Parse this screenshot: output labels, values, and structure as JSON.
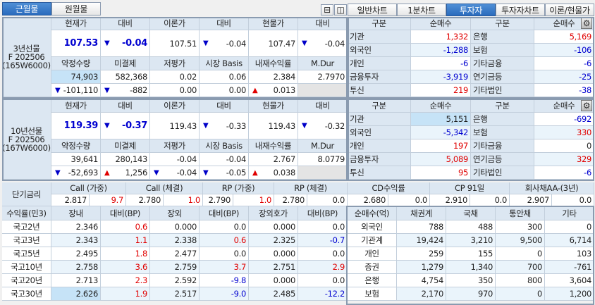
{
  "top_tabs": [
    {
      "label": "근월물",
      "active": true
    },
    {
      "label": "원월물",
      "active": false
    }
  ],
  "view_icons": [
    "layout-split-icon",
    "layout-single-icon"
  ],
  "right_tabs": [
    {
      "label": "일반차트",
      "active": false
    },
    {
      "label": "1분차트",
      "active": false
    },
    {
      "label": "투자자",
      "active": true
    },
    {
      "label": "투자자차트",
      "active": false
    },
    {
      "label": "이론/현물가",
      "active": false
    }
  ],
  "futures": [
    {
      "label": [
        "3년선물",
        "F 202506",
        "(165W6000)"
      ],
      "headers1": [
        "현재가",
        "대비",
        "이론가",
        "대비",
        "현물가",
        "대비"
      ],
      "row1": [
        {
          "v": "107.53",
          "c": "blue",
          "b": true
        },
        {
          "v": "-0.04",
          "c": "blue",
          "b": true,
          "a": "down"
        },
        {
          "v": "107.51"
        },
        {
          "v": "-0.04",
          "a": "down"
        },
        {
          "v": "107.47"
        },
        {
          "v": "-0.04",
          "a": "down"
        }
      ],
      "headers2": [
        "약정수량",
        "미결제",
        "저평가",
        "시장 Basis",
        "내재수익률",
        "M.Dur"
      ],
      "row2": [
        {
          "v": "74,903",
          "hl": true
        },
        {
          "v": "582,368"
        },
        {
          "v": "0.02"
        },
        {
          "v": "0.06"
        },
        {
          "v": "2.384"
        },
        {
          "v": "2.7970"
        }
      ],
      "row3": [
        {
          "v": "-101,110",
          "a": "down"
        },
        {
          "v": "-882",
          "a": "down"
        },
        {
          "v": "0.00"
        },
        {
          "v": "0.00"
        },
        {
          "v": "0.013",
          "a": "up"
        },
        {
          "v": "",
          "gray": true
        }
      ]
    },
    {
      "label": [
        "10년선물",
        "F 202506",
        "(167W6000)"
      ],
      "headers1": [
        "현재가",
        "대비",
        "이론가",
        "대비",
        "현물가",
        "대비"
      ],
      "row1": [
        {
          "v": "119.39",
          "c": "blue",
          "b": true
        },
        {
          "v": "-0.37",
          "c": "blue",
          "b": true,
          "a": "down"
        },
        {
          "v": "119.43"
        },
        {
          "v": "-0.33",
          "a": "down"
        },
        {
          "v": "119.43"
        },
        {
          "v": "-0.32",
          "a": "down"
        }
      ],
      "headers2": [
        "약정수량",
        "미결제",
        "저평가",
        "시장 Basis",
        "내재수익률",
        "M.Dur"
      ],
      "row2": [
        {
          "v": "39,641"
        },
        {
          "v": "280,143"
        },
        {
          "v": "-0.04"
        },
        {
          "v": "-0.04"
        },
        {
          "v": "2.767"
        },
        {
          "v": "8.0779"
        }
      ],
      "row3": [
        {
          "v": "-52,693",
          "a": "down"
        },
        {
          "v": "1,256",
          "a": "up"
        },
        {
          "v": "-0.04",
          "a": "down"
        },
        {
          "v": "-0.05",
          "a": "down"
        },
        {
          "v": "0.038",
          "a": "up"
        },
        {
          "v": "",
          "gray": true
        }
      ]
    }
  ],
  "investors": [
    {
      "headers": [
        "구분",
        "순매수",
        "구분",
        "순매수"
      ],
      "rows": [
        [
          {
            "v": "기관"
          },
          {
            "v": "1,332",
            "c": "red"
          },
          {
            "v": "은행"
          },
          {
            "v": "5,169",
            "c": "red"
          }
        ],
        [
          {
            "v": "외국인"
          },
          {
            "v": "-1,288",
            "c": "blue"
          },
          {
            "v": "보험"
          },
          {
            "v": "-106",
            "c": "blue"
          }
        ],
        [
          {
            "v": "개인"
          },
          {
            "v": "-6",
            "c": "blue"
          },
          {
            "v": "기타금융"
          },
          {
            "v": "-6",
            "c": "blue"
          }
        ],
        [
          {
            "v": "금융투자"
          },
          {
            "v": "-3,919",
            "c": "blue"
          },
          {
            "v": "연기금등"
          },
          {
            "v": "-25",
            "c": "blue"
          }
        ],
        [
          {
            "v": "투신"
          },
          {
            "v": "219",
            "c": "red"
          },
          {
            "v": "기타법인"
          },
          {
            "v": "-38",
            "c": "blue"
          }
        ]
      ]
    },
    {
      "headers": [
        "구분",
        "순매수",
        "구분",
        "순매수"
      ],
      "rows": [
        [
          {
            "v": "기관"
          },
          {
            "v": "5,151",
            "hl": true
          },
          {
            "v": "은행"
          },
          {
            "v": "-692",
            "c": "blue"
          }
        ],
        [
          {
            "v": "외국인"
          },
          {
            "v": "-5,342",
            "c": "blue"
          },
          {
            "v": "보험"
          },
          {
            "v": "330",
            "c": "red"
          }
        ],
        [
          {
            "v": "개인"
          },
          {
            "v": "197",
            "c": "red"
          },
          {
            "v": "기타금융"
          },
          {
            "v": "0"
          }
        ],
        [
          {
            "v": "금융투자"
          },
          {
            "v": "5,089",
            "c": "red"
          },
          {
            "v": "연기금등"
          },
          {
            "v": "329",
            "c": "red"
          }
        ],
        [
          {
            "v": "투신"
          },
          {
            "v": "95",
            "c": "red"
          },
          {
            "v": "기타법인"
          },
          {
            "v": "-6",
            "c": "blue"
          }
        ]
      ]
    }
  ],
  "short_rates": {
    "label": "단기금리",
    "items": [
      {
        "name": "Call (가중)",
        "rate": "2.817",
        "chg": "9.7",
        "c": "red"
      },
      {
        "name": "Call (체결)",
        "rate": "2.780",
        "chg": "1.0",
        "c": "red"
      },
      {
        "name": "RP (가중)",
        "rate": "2.790",
        "chg": "1.0",
        "c": "red"
      },
      {
        "name": "RP (체결)",
        "rate": "2.780",
        "chg": "0.0"
      },
      {
        "name": "CD수익률",
        "rate": "2.680",
        "chg": "0.0"
      },
      {
        "name": "CP 91일",
        "rate": "2.910",
        "chg": "0.0"
      },
      {
        "name": "회사채AA-(3년)",
        "rate": "2.907",
        "chg": "0.0"
      }
    ]
  },
  "yields": {
    "headers": [
      "수익률(민3)",
      "장내",
      "대비(BP)",
      "장외",
      "대비(BP)",
      "장외호가",
      "대비(BP)"
    ],
    "rows": [
      [
        {
          "v": "국고2년"
        },
        {
          "v": "2.346"
        },
        {
          "v": "0.6",
          "c": "red"
        },
        {
          "v": "0.000"
        },
        {
          "v": "0.0"
        },
        {
          "v": "0.000"
        },
        {
          "v": "0.0"
        }
      ],
      [
        {
          "v": "국고3년"
        },
        {
          "v": "2.343"
        },
        {
          "v": "1.1",
          "c": "red"
        },
        {
          "v": "2.338"
        },
        {
          "v": "0.6",
          "c": "red"
        },
        {
          "v": "2.325"
        },
        {
          "v": "-0.7",
          "c": "blue"
        }
      ],
      [
        {
          "v": "국고5년"
        },
        {
          "v": "2.495"
        },
        {
          "v": "1.8",
          "c": "red"
        },
        {
          "v": "2.477"
        },
        {
          "v": "0.0"
        },
        {
          "v": "0.000"
        },
        {
          "v": "0.0"
        }
      ],
      [
        {
          "v": "국고10년"
        },
        {
          "v": "2.758"
        },
        {
          "v": "3.6",
          "c": "red"
        },
        {
          "v": "2.759"
        },
        {
          "v": "3.7",
          "c": "red"
        },
        {
          "v": "2.751"
        },
        {
          "v": "2.9",
          "c": "red"
        }
      ],
      [
        {
          "v": "국고20년"
        },
        {
          "v": "2.713"
        },
        {
          "v": "2.3",
          "c": "red"
        },
        {
          "v": "2.592"
        },
        {
          "v": "-9.8",
          "c": "blue"
        },
        {
          "v": "0.000"
        },
        {
          "v": "0.0"
        }
      ],
      [
        {
          "v": "국고30년"
        },
        {
          "v": "2.626",
          "hl": true
        },
        {
          "v": "1.9",
          "c": "red"
        },
        {
          "v": "2.517"
        },
        {
          "v": "-9.0",
          "c": "blue"
        },
        {
          "v": "2.485"
        },
        {
          "v": "-12.2",
          "c": "blue"
        }
      ]
    ]
  },
  "net_buy": {
    "headers": [
      "순매수(억)",
      "채권계",
      "국채",
      "통안채",
      "기타"
    ],
    "rows": [
      [
        {
          "v": "외국인"
        },
        {
          "v": "788"
        },
        {
          "v": "488"
        },
        {
          "v": "300"
        },
        {
          "v": "0"
        }
      ],
      [
        {
          "v": "기관계"
        },
        {
          "v": "19,424"
        },
        {
          "v": "3,210"
        },
        {
          "v": "9,500"
        },
        {
          "v": "6,714"
        }
      ],
      [
        {
          "v": "개인"
        },
        {
          "v": "259"
        },
        {
          "v": "155"
        },
        {
          "v": "0"
        },
        {
          "v": "103"
        }
      ],
      [
        {
          "v": "증권"
        },
        {
          "v": "1,279"
        },
        {
          "v": "1,340"
        },
        {
          "v": "700"
        },
        {
          "v": "-761"
        }
      ],
      [
        {
          "v": "은행"
        },
        {
          "v": "4,754"
        },
        {
          "v": "350"
        },
        {
          "v": "800"
        },
        {
          "v": "3,604"
        }
      ],
      [
        {
          "v": "보험"
        },
        {
          "v": "2,170"
        },
        {
          "v": "970"
        },
        {
          "v": "0"
        },
        {
          "v": "1,200"
        }
      ]
    ]
  },
  "colors": {
    "up": "#e00000",
    "down": "#0000d0",
    "header": "#dce7f2",
    "accent": "#2a6bbd",
    "highlight": "#c6e3f7"
  }
}
